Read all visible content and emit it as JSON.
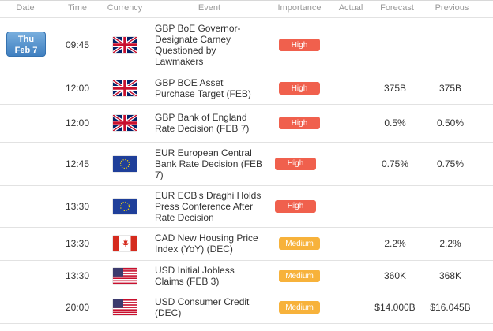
{
  "header": [
    "Date",
    "Time",
    "Currency",
    "Event",
    "Importance",
    "Actual",
    "Forecast",
    "Previous"
  ],
  "date": {
    "weekday": "Thu",
    "day": "Feb 7"
  },
  "rows": [
    {
      "time": "09:45",
      "event": "GBP BoE Governor-Designate Carney Questioned by Lawmakers",
      "importance": "High"
    },
    {
      "time": "12:00",
      "event": "GBP BOE Asset Purchase Target (FEB)",
      "importance": "High",
      "forecast": "375B",
      "previous": "375B"
    },
    {
      "time": "12:00",
      "event": "GBP Bank of England Rate Decision (FEB 7)",
      "importance": "High",
      "forecast": "0.5%",
      "previous": "0.50%"
    },
    {
      "time": "12:45",
      "event": "EUR European Central Bank Rate Decision (FEB 7)",
      "importance": "High",
      "forecast": "0.75%",
      "previous": "0.75%"
    },
    {
      "time": "13:30",
      "event": "EUR ECB's Draghi Holds Press Conference After Rate Decision",
      "importance": "High"
    },
    {
      "time": "13:30",
      "event": "CAD New Housing Price Index (YoY) (DEC)",
      "importance": "Medium",
      "forecast": "2.2%",
      "previous": "2.2%"
    },
    {
      "time": "13:30",
      "event": "USD Initial Jobless Claims (FEB 3)",
      "importance": "Medium",
      "forecast": "360K",
      "previous": "368K"
    },
    {
      "time": "20:00",
      "event": "USD Consumer Credit (DEC)",
      "importance": "Medium",
      "forecast": "$14.000B",
      "previous": "$16.045B"
    }
  ]
}
